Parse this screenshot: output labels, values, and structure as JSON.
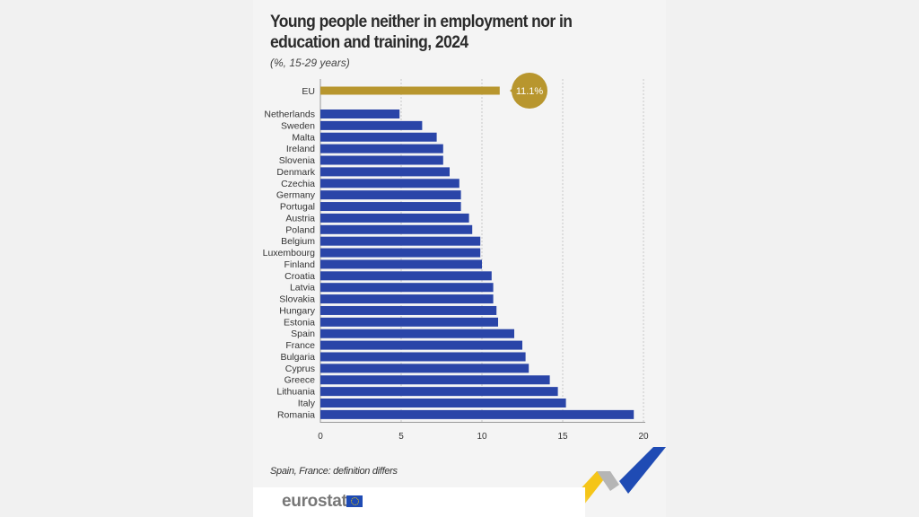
{
  "title": "Young people neither in employment nor in education and training, 2024",
  "subtitle": "(%, 15-29 years)",
  "note": "Spain, France: definition differs",
  "logo": "eurostat",
  "colors": {
    "eu": "#b8962e",
    "countries": "#2a45a8",
    "logo_blue": "#1f4bb4",
    "logo_yellow": "#f5c518"
  },
  "chart_data": {
    "type": "bar",
    "orientation": "horizontal",
    "title": "Young people neither in employment nor in education and training, 2024",
    "subtitle": "(%, 15-29 years)",
    "highlight": {
      "category": "EU",
      "value": 11.1,
      "label": "11.1%"
    },
    "categories": [
      "Netherlands",
      "Sweden",
      "Malta",
      "Ireland",
      "Slovenia",
      "Denmark",
      "Czechia",
      "Germany",
      "Portugal",
      "Austria",
      "Poland",
      "Belgium",
      "Luxembourg",
      "Finland",
      "Croatia",
      "Latvia",
      "Slovakia",
      "Hungary",
      "Estonia",
      "Spain",
      "France",
      "Bulgaria",
      "Cyprus",
      "Greece",
      "Lithuania",
      "Italy",
      "Romania"
    ],
    "values": [
      4.9,
      6.3,
      7.2,
      7.6,
      7.6,
      8.0,
      8.6,
      8.7,
      8.7,
      9.2,
      9.4,
      9.9,
      9.9,
      10.0,
      10.6,
      10.7,
      10.7,
      10.9,
      11.0,
      12.0,
      12.5,
      12.7,
      12.9,
      14.2,
      14.7,
      15.2,
      19.4
    ],
    "xlim": [
      0,
      20
    ],
    "xticks": [
      "0",
      "5",
      "10",
      "15",
      "20"
    ],
    "grid": true,
    "footnote": "Spain, France: definition differs"
  }
}
